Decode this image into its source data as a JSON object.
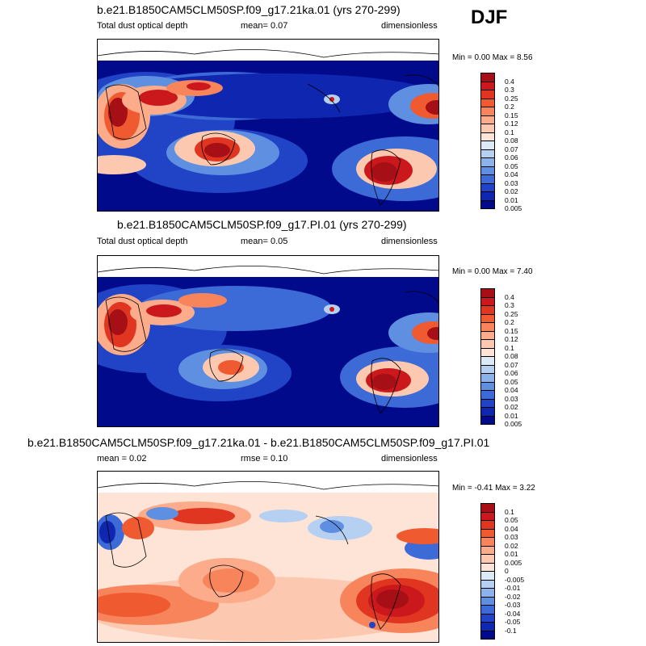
{
  "season": "DJF",
  "panels": [
    {
      "title": "b.e21.B1850CAM5CLM50SP.f09_g17.21ka.01 (yrs 270-299)",
      "left_label": "Total dust optical depth",
      "mean_text": "mean=   0.07",
      "right_label": "dimensionless",
      "minmax_text": "Min =   0.00 Max =   8.56"
    },
    {
      "title": "b.e21.B1850CAM5CLM50SP.f09_g17.PI.01 (yrs 270-299)",
      "left_label": "Total dust optical depth",
      "mean_text": "mean=   0.05",
      "right_label": "dimensionless",
      "minmax_text": "Min =   0.00 Max =   7.40"
    },
    {
      "title": "b.e21.B1850CAM5CLM50SP.f09_g17.21ka.01 - b.e21.B1850CAM5CLM50SP.f09_g17.PI.01",
      "left_label": "mean =   0.02",
      "mean_text": "rmse =   0.10",
      "right_label": "dimensionless",
      "minmax_text": "Min =  -0.41 Max =   3.22"
    }
  ],
  "chart_data": {
    "type": "heatmap",
    "projection": "global lat-lon map, centered on Pacific",
    "colorbars": {
      "aod": {
        "levels": [
          "0.4",
          "0.3",
          "0.25",
          "0.2",
          "0.15",
          "0.12",
          "0.1",
          "0.08",
          "0.07",
          "0.06",
          "0.05",
          "0.04",
          "0.03",
          "0.02",
          "0.01",
          "0.005"
        ],
        "colors": [
          "#a50f15",
          "#cb181d",
          "#e03520",
          "#ef5a30",
          "#f7845a",
          "#fcac8a",
          "#fcc9b0",
          "#fde4d6",
          "#dce9f7",
          "#b6d0f1",
          "#8bb2ea",
          "#5f8fe0",
          "#3c6ad6",
          "#2144c6",
          "#0f26b0",
          "#020a8c"
        ]
      },
      "diff": {
        "levels": [
          "0.1",
          "0.05",
          "0.04",
          "0.03",
          "0.02",
          "0.01",
          "0.005",
          "0",
          "-0.005",
          "-0.01",
          "-0.02",
          "-0.03",
          "-0.04",
          "-0.05",
          "-0.1"
        ],
        "colors": [
          "#a50f15",
          "#cb181d",
          "#e03520",
          "#ef5a30",
          "#f7845a",
          "#fcac8a",
          "#fcc9b0",
          "#fde4d6",
          "#dce9f7",
          "#b6d0f1",
          "#8bb2ea",
          "#5f8fe0",
          "#3c6ad6",
          "#2144c6",
          "#0f26b0",
          "#020a8c"
        ]
      }
    },
    "summary": [
      {
        "panel": "21ka",
        "mean": 0.07,
        "min": 0.0,
        "max": 8.56
      },
      {
        "panel": "PI",
        "mean": 0.05,
        "min": 0.0,
        "max": 7.4
      },
      {
        "panel": "difference",
        "mean": 0.02,
        "rmse": 0.1,
        "min": -0.41,
        "max": 3.22
      }
    ]
  }
}
